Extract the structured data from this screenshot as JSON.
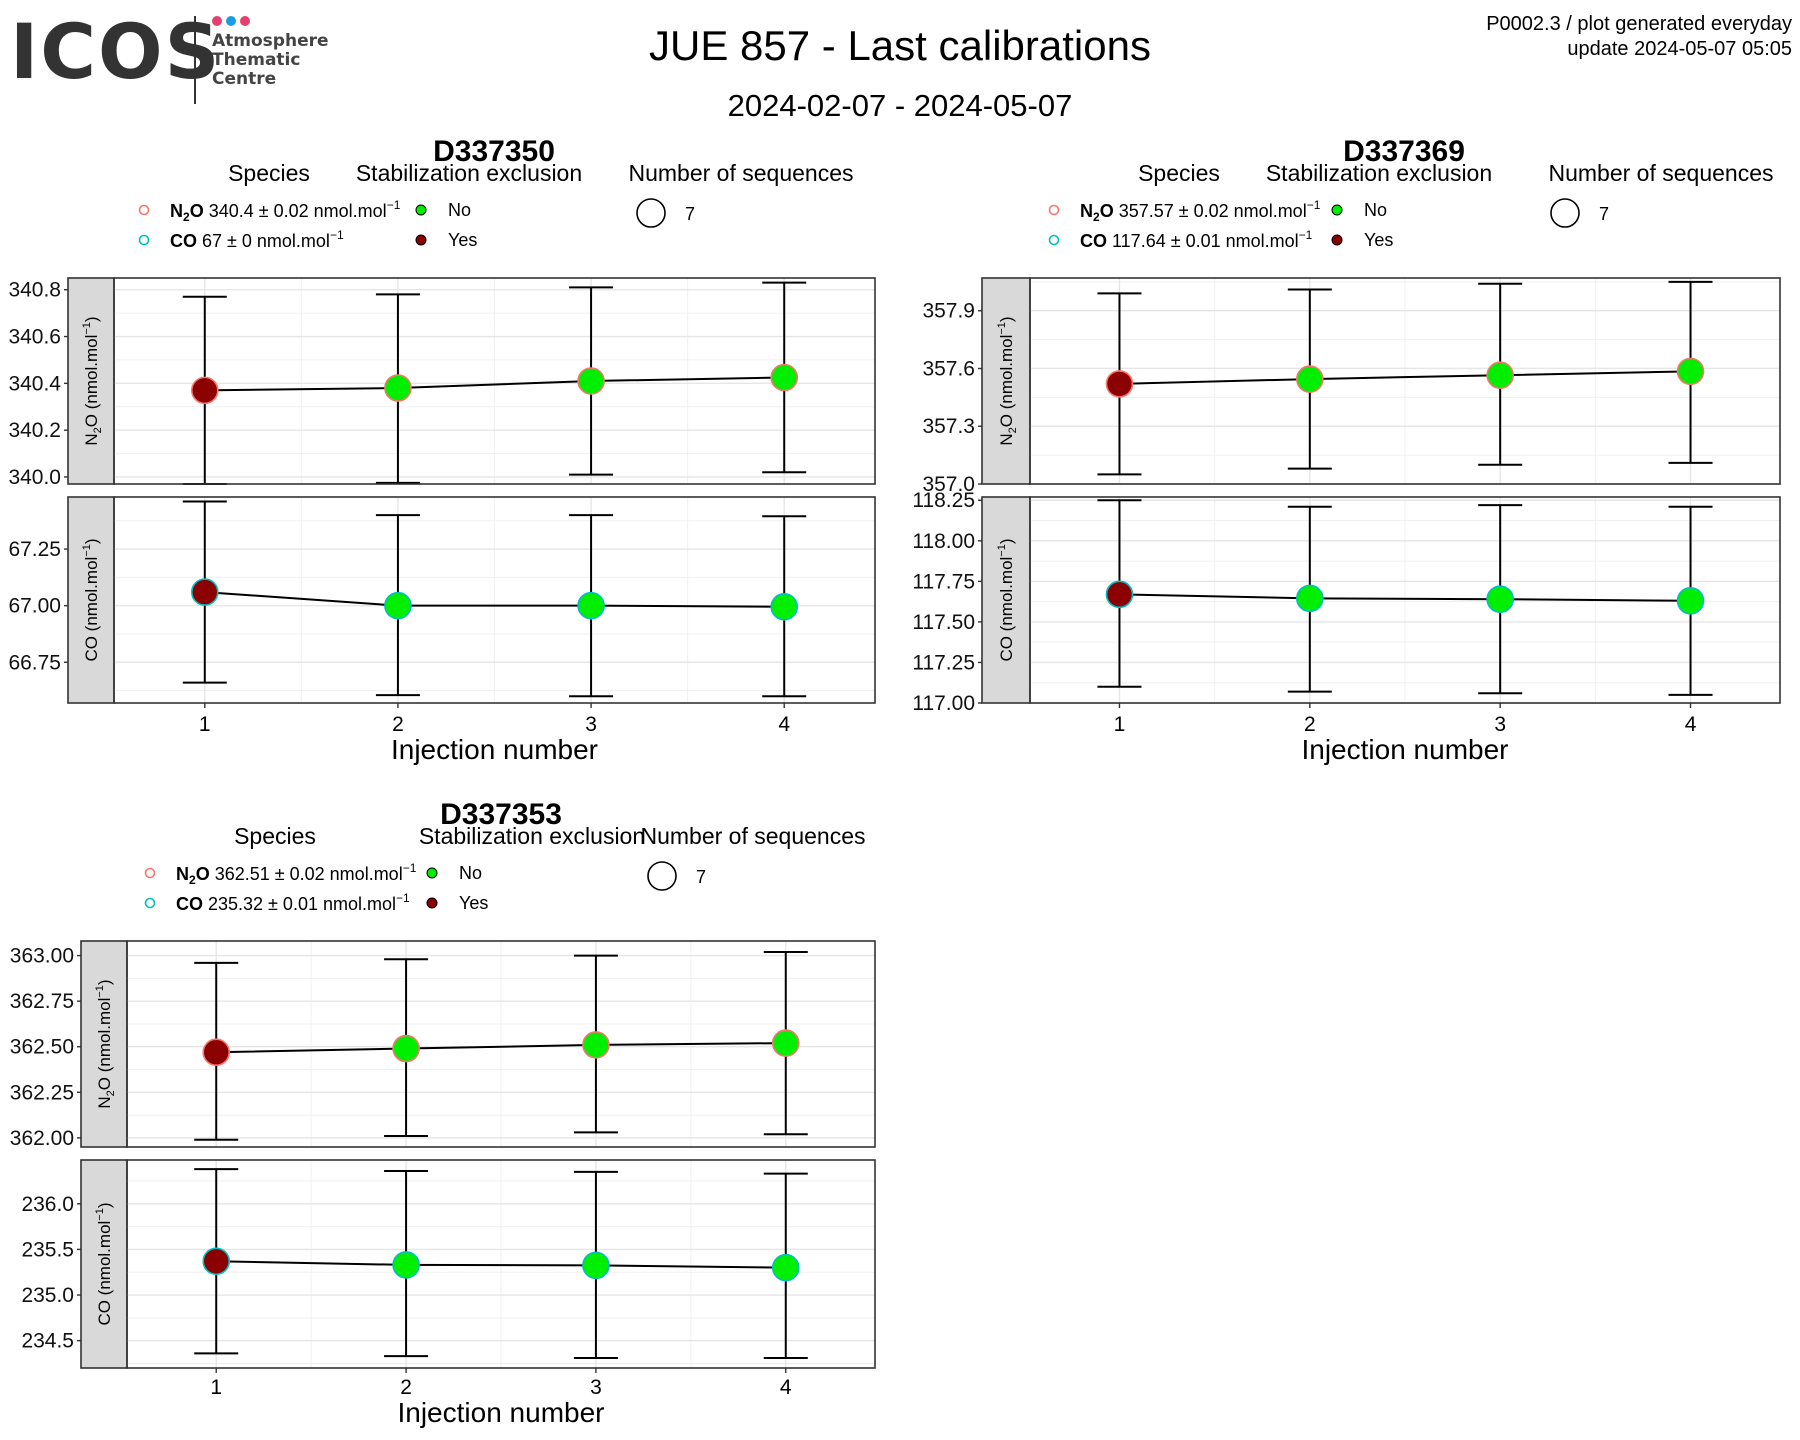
{
  "header": {
    "logo_word": "ICOS",
    "logo_lines": [
      "Atmosphere",
      "Thematic",
      "Centre"
    ],
    "logo_dot_colors": [
      "#e5406f",
      "#1e9be0",
      "#e5406f"
    ],
    "title": "JUE 857 - Last calibrations",
    "subtitle": "2024-02-07 - 2024-05-07",
    "meta_line1": "P0002.3 / plot generated everyday",
    "meta_line2": "update  2024-05-07 05:05"
  },
  "legend_labels": {
    "species": "Species",
    "stabilization": "Stabilization exclusion",
    "sequences": "Number of sequences",
    "no": "No",
    "yes": "Yes",
    "sequence_count": "7",
    "unit": "nmol.mol"
  },
  "colors": {
    "no": "#00ee00",
    "yes": "#8b0000",
    "n2o_species": "#f8766d",
    "co_species": "#00bfc4",
    "strip": "#d9d9d9"
  },
  "chart_data": [
    {
      "type": "scatter",
      "title": "D337350",
      "xlabel": "Injection number",
      "x": [
        1,
        2,
        3,
        4
      ],
      "legend": {
        "n2o": "340.4 ± 0.02",
        "co": "67 ± 0"
      },
      "panels": [
        {
          "species": "N2O",
          "ylabel": "N2O (nmol.mol-1)",
          "ylim": [
            339.97,
            340.85
          ],
          "yticks": [
            340.0,
            340.2,
            340.4,
            340.6,
            340.8
          ],
          "tick_labels": [
            "340.0",
            "340.2",
            "340.4",
            "340.6",
            "340.8"
          ],
          "values": [
            340.37,
            340.38,
            340.41,
            340.425
          ],
          "err_low": [
            339.97,
            339.975,
            340.01,
            340.02
          ],
          "err_high": [
            340.77,
            340.78,
            340.81,
            340.83
          ],
          "excluded": [
            true,
            false,
            false,
            false
          ]
        },
        {
          "species": "CO",
          "ylabel": "CO (nmol.mol-1)",
          "ylim": [
            66.57,
            67.48
          ],
          "yticks": [
            66.75,
            67.0,
            67.25
          ],
          "tick_labels": [
            "66.75",
            "67.00",
            "67.25"
          ],
          "values": [
            67.06,
            67.0,
            67.0,
            66.995
          ],
          "err_low": [
            66.66,
            66.605,
            66.6,
            66.6
          ],
          "err_high": [
            67.46,
            67.4,
            67.4,
            67.395
          ],
          "excluded": [
            true,
            false,
            false,
            false
          ]
        }
      ]
    },
    {
      "type": "scatter",
      "title": "D337369",
      "xlabel": "Injection number",
      "x": [
        1,
        2,
        3,
        4
      ],
      "legend": {
        "n2o": "357.57 ± 0.02",
        "co": "117.64 ± 0.01"
      },
      "panels": [
        {
          "species": "N2O",
          "ylabel": "N2O (nmol.mol-1)",
          "ylim": [
            357.0,
            358.07
          ],
          "yticks": [
            357.0,
            357.3,
            357.6,
            357.9
          ],
          "tick_labels": [
            "357.0",
            "357.3",
            "357.6",
            "357.9"
          ],
          "values": [
            357.52,
            357.545,
            357.565,
            357.585
          ],
          "err_low": [
            357.05,
            357.08,
            357.1,
            357.11
          ],
          "err_high": [
            357.99,
            358.01,
            358.04,
            358.05
          ],
          "excluded": [
            true,
            false,
            false,
            false
          ]
        },
        {
          "species": "CO",
          "ylabel": "CO (nmol.mol-1)",
          "ylim": [
            117.0,
            118.27
          ],
          "yticks": [
            117.0,
            117.25,
            117.5,
            117.75,
            118.0,
            118.25
          ],
          "tick_labels": [
            "117.00",
            "117.25",
            "117.50",
            "117.75",
            "118.00",
            "118.25"
          ],
          "values": [
            117.67,
            117.645,
            117.64,
            117.63
          ],
          "err_low": [
            117.1,
            117.07,
            117.06,
            117.05
          ],
          "err_high": [
            118.25,
            118.21,
            118.22,
            118.21
          ],
          "excluded": [
            true,
            false,
            false,
            false
          ]
        }
      ]
    },
    {
      "type": "scatter",
      "title": "D337353",
      "xlabel": "Injection number",
      "x": [
        1,
        2,
        3,
        4
      ],
      "legend": {
        "n2o": "362.51 ± 0.02",
        "co": "235.32 ± 0.01"
      },
      "panels": [
        {
          "species": "N2O",
          "ylabel": "N2O (nmol.mol-1)",
          "ylim": [
            361.95,
            363.08
          ],
          "yticks": [
            362.0,
            362.25,
            362.5,
            362.75,
            363.0
          ],
          "tick_labels": [
            "362.00",
            "362.25",
            "362.50",
            "362.75",
            "363.00"
          ],
          "values": [
            362.47,
            362.49,
            362.51,
            362.52
          ],
          "err_low": [
            361.99,
            362.01,
            362.03,
            362.02
          ],
          "err_high": [
            362.96,
            362.98,
            363.0,
            363.02
          ],
          "excluded": [
            true,
            false,
            false,
            false
          ]
        },
        {
          "species": "CO",
          "ylabel": "CO (nmol.mol-1)",
          "ylim": [
            234.2,
            236.48
          ],
          "yticks": [
            234.5,
            235.0,
            235.5,
            236.0
          ],
          "tick_labels": [
            "234.5",
            "235.0",
            "235.5",
            "236.0"
          ],
          "values": [
            235.37,
            235.33,
            235.325,
            235.3
          ],
          "err_low": [
            234.36,
            234.33,
            234.31,
            234.31
          ],
          "err_high": [
            236.38,
            236.36,
            236.35,
            236.33
          ],
          "excluded": [
            true,
            false,
            false,
            false
          ]
        }
      ]
    }
  ]
}
